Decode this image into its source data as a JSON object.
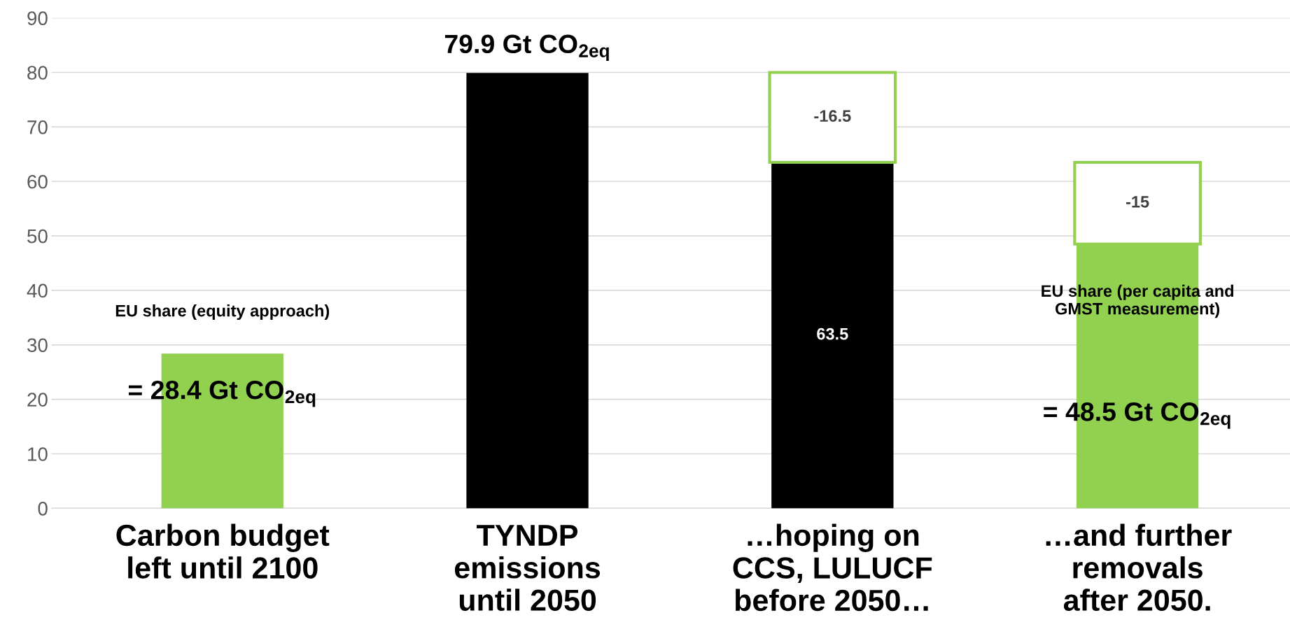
{
  "chart_data": {
    "type": "bar",
    "categories": [
      "Carbon budget\nleft until 2100",
      "TYNDP\nemissions\nuntil 2050",
      "…hoping on\nCCS, LULUCF\nbefore 2050…",
      "…and further\nremovals\nafter 2050."
    ],
    "series": [
      {
        "colors": [
          "#92d050",
          "#000000",
          "#000000",
          "#92d050"
        ],
        "values": [
          28.4,
          79.9,
          63.5,
          48.5
        ],
        "value_labels": [
          null,
          null,
          "63.5",
          null
        ]
      },
      {
        "color": "#92d050",
        "base": [
          null,
          null,
          80,
          63.5
        ],
        "values": [
          null,
          null,
          -16.5,
          -15
        ],
        "data_labels": true
      }
    ],
    "ylim": [
      0,
      90
    ],
    "yticks": [
      0,
      10,
      20,
      30,
      40,
      50,
      60,
      70,
      80,
      90
    ],
    "grid": "y",
    "annotations": [
      "EU share (equity approach)",
      "= 28.4 Gt CO$_{2eq}$",
      "79.9 Gt CO$_{2eq}$",
      "EU share (per capita and\nGMST measurement)",
      "= 48.5 Gt CO$_{2eq}$"
    ]
  }
}
